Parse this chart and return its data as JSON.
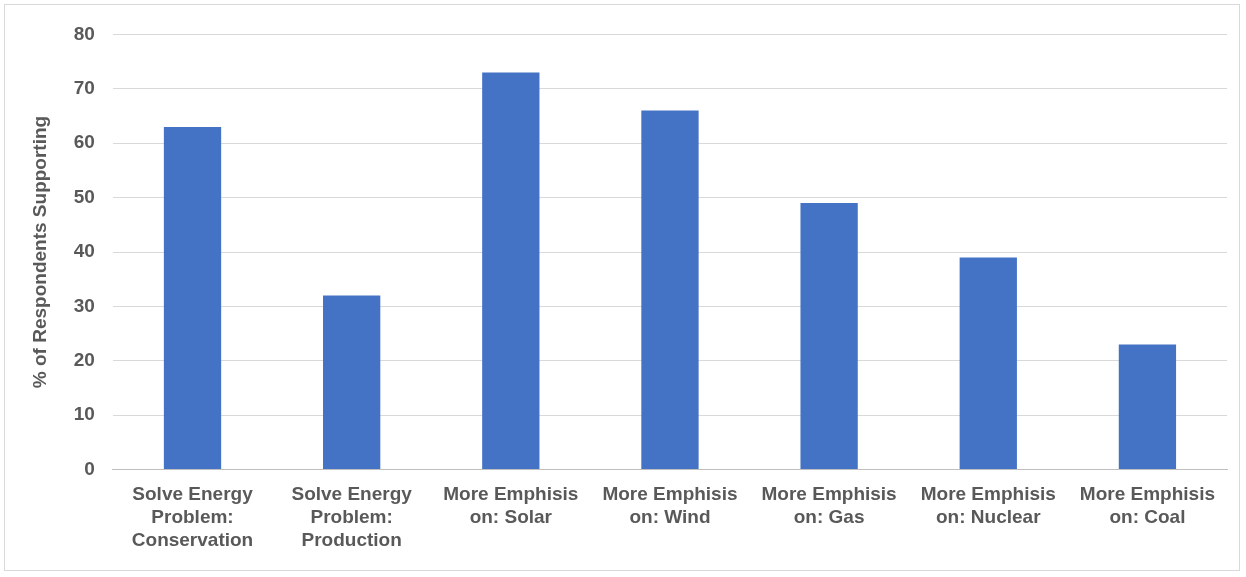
{
  "chart_data": {
    "type": "bar",
    "ylabel": "% of Respondents Supporting",
    "categories": [
      "Solve Energy Problem: Conservation",
      "Solve Energy Problem: Production",
      "More Emphisis on: Solar",
      "More Emphisis on: Wind",
      "More Emphisis on: Gas",
      "More Emphisis on: Nuclear",
      "More Emphisis on: Coal"
    ],
    "values": [
      63,
      32,
      73,
      66,
      49,
      39,
      23
    ],
    "color": "#4472c4",
    "ylim": [
      0,
      80
    ],
    "yticks": [
      0,
      10,
      20,
      30,
      40,
      50,
      60,
      70,
      80
    ],
    "grid": "y",
    "legend": false
  }
}
